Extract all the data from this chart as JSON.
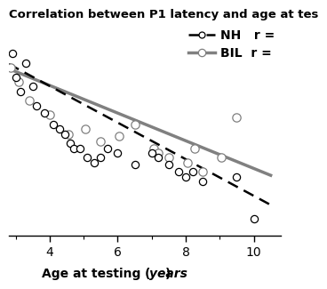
{
  "title": "Correlation between P1 latency and age at tes",
  "xlim": [
    2.8,
    10.8
  ],
  "ylim": [
    0.05,
    0.95
  ],
  "nh_scatter_x": [
    2.9,
    3.0,
    3.15,
    3.3,
    3.5,
    3.6,
    3.85,
    4.1,
    4.3,
    4.45,
    4.6,
    4.7,
    4.9,
    5.1,
    5.3,
    5.5,
    5.7,
    6.0,
    6.5,
    7.0,
    7.2,
    7.5,
    7.8,
    8.0,
    8.2,
    8.5,
    9.5,
    10.0
  ],
  "nh_scatter_y": [
    0.82,
    0.72,
    0.66,
    0.78,
    0.68,
    0.6,
    0.57,
    0.52,
    0.5,
    0.48,
    0.44,
    0.42,
    0.42,
    0.38,
    0.36,
    0.38,
    0.42,
    0.4,
    0.35,
    0.4,
    0.38,
    0.35,
    0.32,
    0.3,
    0.32,
    0.28,
    0.3,
    0.12
  ],
  "bil_scatter_x": [
    2.85,
    3.1,
    3.4,
    4.0,
    4.55,
    5.05,
    5.5,
    6.05,
    6.5,
    7.05,
    7.2,
    7.5,
    8.05,
    8.25,
    8.5,
    9.05,
    9.5
  ],
  "bil_scatter_y": [
    0.76,
    0.7,
    0.62,
    0.56,
    0.48,
    0.5,
    0.45,
    0.47,
    0.52,
    0.42,
    0.4,
    0.38,
    0.36,
    0.42,
    0.32,
    0.38,
    0.55
  ],
  "nh_line_x": [
    2.8,
    10.5
  ],
  "nh_line_y": [
    0.775,
    0.18
  ],
  "bil_line_x": [
    2.8,
    10.5
  ],
  "bil_line_y": [
    0.755,
    0.305
  ],
  "nh_color": "#000000",
  "bil_color": "#808080",
  "scatter_facecolor": "white",
  "xticks_major": [
    4,
    6,
    8,
    10
  ],
  "xticks_minor": [
    3,
    5,
    7,
    9
  ],
  "background_color": "#ffffff",
  "legend_nh": "NH   r =",
  "legend_bil": "BIL  r =",
  "title_fontsize": 9.5,
  "label_fontsize": 10,
  "tick_fontsize": 10,
  "legend_fontsize": 10
}
